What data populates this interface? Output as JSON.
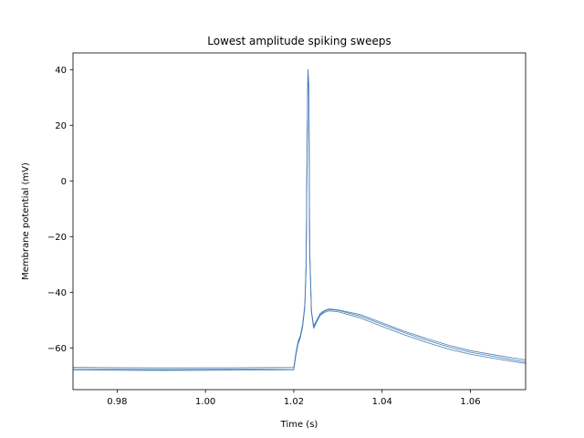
{
  "chart_data": {
    "type": "line",
    "title": "Lowest amplitude spiking sweeps",
    "xlabel": "Time (s)",
    "ylabel": "Membrane potential (mV)",
    "xlim": [
      0.97,
      1.0725
    ],
    "ylim": [
      -75,
      46
    ],
    "xticks": [
      0.98,
      1.0,
      1.02,
      1.04,
      1.06
    ],
    "xtick_labels": [
      "0.98",
      "1.00",
      "1.02",
      "1.04",
      "1.06"
    ],
    "yticks": [
      -60,
      -40,
      -20,
      0,
      20,
      40
    ],
    "ytick_labels": [
      "−60",
      "−40",
      "−20",
      "0",
      "20",
      "40"
    ],
    "grid": false,
    "line_color": "#4a7fb5",
    "series": [
      {
        "x": [
          0.97,
          0.99,
          1.01,
          1.02,
          1.0205,
          1.021,
          1.0215,
          1.022,
          1.0225,
          1.0228,
          1.023,
          1.0232,
          1.0234,
          1.0236,
          1.024,
          1.0245,
          1.025,
          1.026,
          1.027,
          1.028,
          1.03,
          1.035,
          1.04,
          1.045,
          1.05,
          1.055,
          1.06,
          1.065,
          1.07,
          1.0725
        ],
        "y": [
          -67.5,
          -67.8,
          -67.6,
          -67.5,
          -62,
          -58,
          -56,
          -52,
          -45,
          -30,
          10,
          40,
          35,
          -25,
          -47,
          -52.5,
          -51,
          -48,
          -46.8,
          -46.2,
          -46.5,
          -48.5,
          -51.5,
          -54.5,
          -57.2,
          -59.6,
          -61.6,
          -63.0,
          -64.4,
          -65.0
        ]
      },
      {
        "x": [
          0.97,
          0.99,
          1.01,
          1.02,
          1.0205,
          1.021,
          1.0215,
          1.022,
          1.0225,
          1.0228,
          1.023,
          1.0232,
          1.0234,
          1.0236,
          1.024,
          1.0245,
          1.025,
          1.026,
          1.027,
          1.028,
          1.03,
          1.035,
          1.04,
          1.045,
          1.05,
          1.055,
          1.06,
          1.065,
          1.07,
          1.0725
        ],
        "y": [
          -67.0,
          -67.2,
          -67.1,
          -67.0,
          -61.5,
          -57.5,
          -55.5,
          -51.5,
          -44.5,
          -29,
          11,
          40,
          34,
          -24,
          -46.8,
          -52.0,
          -50.6,
          -47.6,
          -46.5,
          -46.0,
          -46.3,
          -48.0,
          -51.0,
          -54.0,
          -56.6,
          -59.0,
          -61.0,
          -62.4,
          -63.7,
          -64.3
        ]
      },
      {
        "x": [
          0.97,
          0.99,
          1.01,
          1.02,
          1.0205,
          1.021,
          1.0215,
          1.022,
          1.0225,
          1.0228,
          1.023,
          1.0232,
          1.0234,
          1.0236,
          1.024,
          1.0245,
          1.025,
          1.026,
          1.027,
          1.028,
          1.03,
          1.035,
          1.04,
          1.045,
          1.05,
          1.055,
          1.06,
          1.065,
          1.07,
          1.0725
        ],
        "y": [
          -68.0,
          -68.1,
          -68.0,
          -67.9,
          -62.5,
          -58.5,
          -56.3,
          -52.5,
          -45.5,
          -31,
          9,
          39.5,
          34,
          -26,
          -47.3,
          -53.0,
          -51.3,
          -48.3,
          -47.2,
          -46.7,
          -47.0,
          -49.2,
          -52.3,
          -55.3,
          -58.0,
          -60.4,
          -62.3,
          -63.7,
          -65.0,
          -65.6
        ]
      }
    ]
  }
}
